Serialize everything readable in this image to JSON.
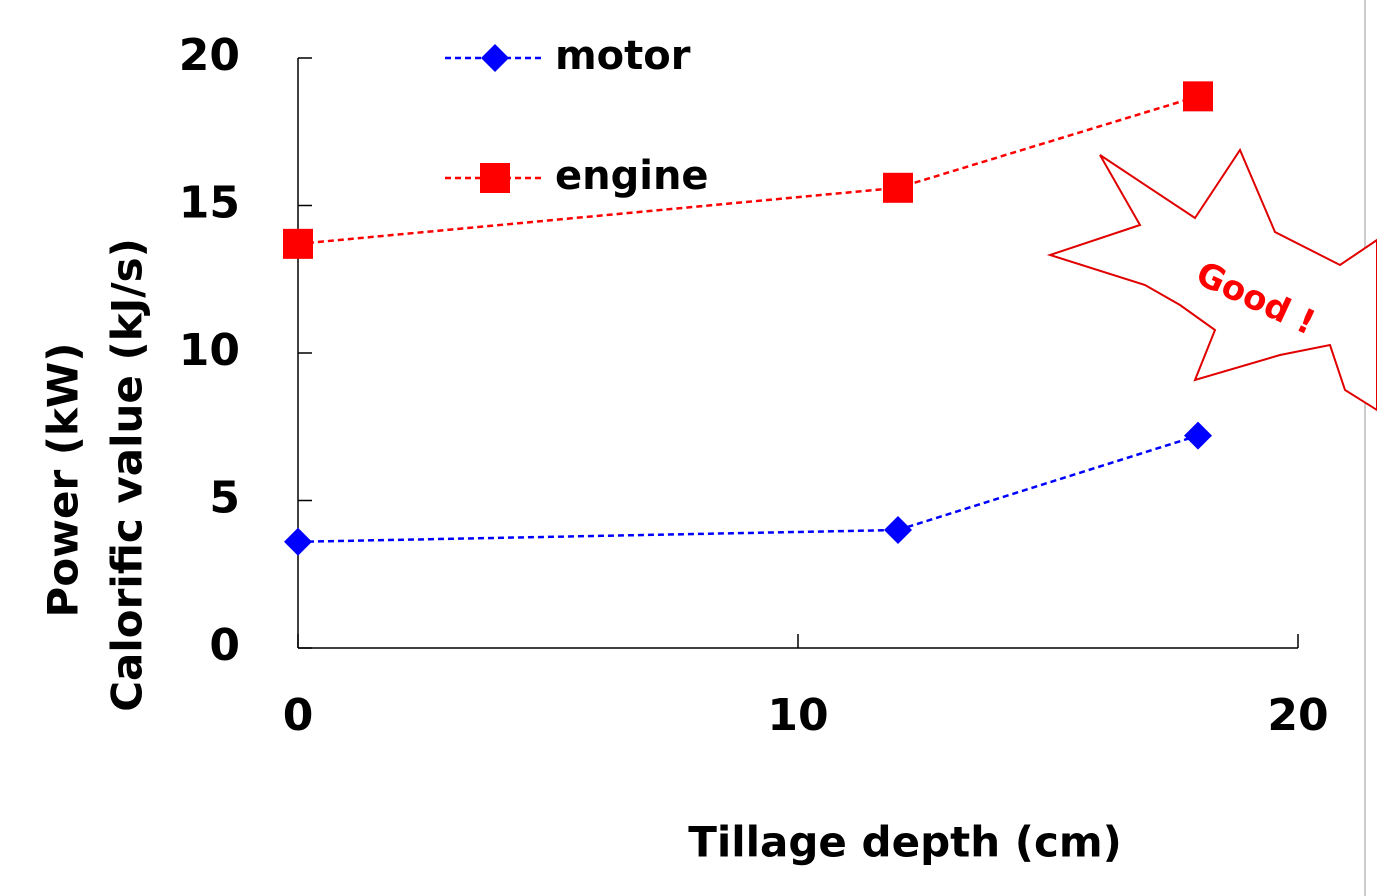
{
  "chart_data": {
    "type": "line",
    "x": [
      0,
      12,
      18
    ],
    "series": [
      {
        "name": "motor",
        "color": "#0000ff",
        "marker": "diamond",
        "values": [
          3.6,
          4.0,
          7.2
        ]
      },
      {
        "name": "engine",
        "color": "#ff0000",
        "marker": "square",
        "values": [
          13.7,
          15.6,
          18.7
        ]
      }
    ],
    "xlim": [
      0,
      20
    ],
    "ylim": [
      0,
      20
    ],
    "xticks": [
      0,
      10,
      20
    ],
    "yticks": [
      0,
      5,
      10,
      15,
      20
    ],
    "xlabel": "Tillage depth (cm)",
    "ylabel": [
      "Power (kW)",
      "Calorific value (kJ/s)"
    ],
    "annotation": "Good !"
  }
}
